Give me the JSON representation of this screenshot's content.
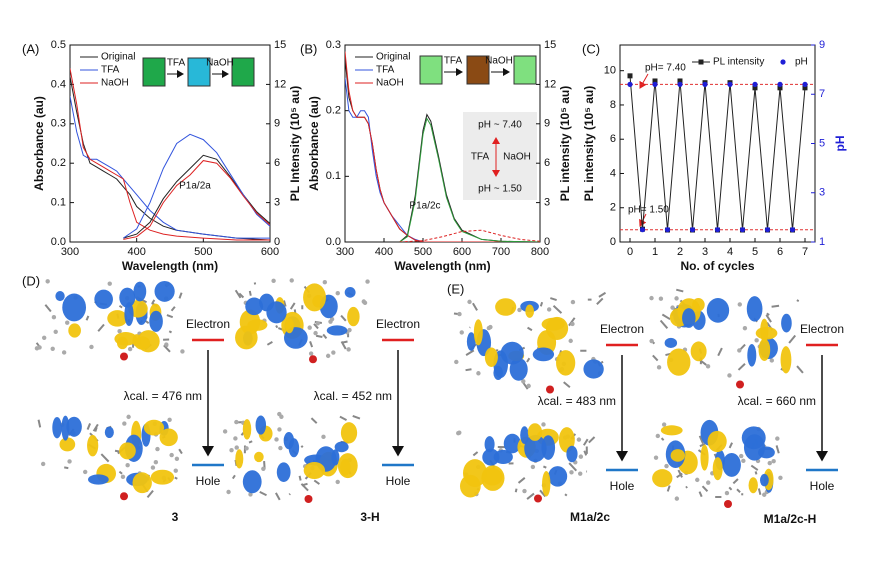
{
  "chart_data": [
    {
      "type": "line",
      "panel_label": "(A)",
      "x_label": "Wavelength (nm)",
      "y_label": "Absorbance (au)",
      "y2_label": "PL Intensity (10⁵ au)",
      "xlim": [
        300,
        600
      ],
      "xticks": [
        300,
        400,
        500,
        600
      ],
      "ylim": [
        0,
        0.5
      ],
      "yticks": [
        {
          "value": 0,
          "label": "0.0"
        },
        0.1,
        0.2,
        0.3,
        0.4,
        0.5
      ],
      "y2lim": [
        0,
        15
      ],
      "y2ticks": [
        0,
        3,
        6,
        9,
        12,
        15
      ],
      "legend": "upper left",
      "annotations": [
        "TFA",
        "NaOH",
        "P1a/2a"
      ],
      "series": [
        {
          "name": "Original",
          "color": "#222222",
          "x": [
            300,
            310,
            320,
            330,
            340,
            350,
            360,
            370,
            380,
            390,
            400,
            420,
            440,
            460,
            500,
            550,
            600
          ],
          "values": [
            0.42,
            0.33,
            0.25,
            0.2,
            0.19,
            0.18,
            0.17,
            0.16,
            0.14,
            0.12,
            0.09,
            0.06,
            0.04,
            0.03,
            0.02,
            0.01,
            0.005
          ]
        },
        {
          "name": "TFA",
          "color": "#3355dd",
          "x": [
            300,
            310,
            320,
            330,
            340,
            350,
            360,
            370,
            380,
            390,
            400,
            420,
            440,
            460,
            500,
            550,
            600
          ],
          "values": [
            0.37,
            0.28,
            0.22,
            0.21,
            0.21,
            0.2,
            0.19,
            0.18,
            0.16,
            0.14,
            0.12,
            0.08,
            0.05,
            0.03,
            0.02,
            0.01,
            0.01
          ]
        },
        {
          "name": "NaOH",
          "color": "#dd2222",
          "x": [
            300,
            310,
            320,
            330,
            340,
            350,
            360,
            370,
            380,
            390,
            400,
            420,
            440,
            460,
            500,
            550,
            600
          ],
          "values": [
            0.44,
            0.35,
            0.24,
            0.21,
            0.2,
            0.19,
            0.18,
            0.17,
            0.16,
            0.1,
            0.05,
            0.03,
            0.02,
            0.015,
            0.01,
            0.005,
            0.005
          ]
        },
        {
          "color": "#222222",
          "axis": "y2",
          "x": [
            380,
            400,
            420,
            440,
            460,
            480,
            500,
            520,
            540,
            560,
            580,
            600
          ],
          "values": [
            0.3,
            0.6,
            1.5,
            3.3,
            4.6,
            5.6,
            6.6,
            6.3,
            5.0,
            3.6,
            2.3,
            1.4
          ]
        },
        {
          "color": "#3355dd",
          "axis": "y2",
          "x": [
            380,
            400,
            420,
            440,
            460,
            480,
            500,
            520,
            540,
            560,
            580,
            600
          ],
          "values": [
            0.3,
            1.0,
            3.0,
            5.6,
            7.5,
            8.2,
            7.8,
            6.8,
            5.2,
            3.6,
            2.1,
            1.2
          ]
        },
        {
          "color": "#dd2222",
          "axis": "y2",
          "x": [
            380,
            400,
            420,
            440,
            460,
            480,
            500,
            520,
            540,
            560,
            580,
            600
          ],
          "values": [
            0.2,
            0.4,
            1.2,
            3.0,
            4.3,
            5.1,
            6.2,
            6.0,
            4.9,
            3.5,
            2.2,
            1.3
          ]
        }
      ]
    },
    {
      "type": "line",
      "panel_label": "(B)",
      "x_label": "Wavelength (nm)",
      "y_label": "Absorbance (au)",
      "y2_label": "PL intensity (10⁵ au)",
      "xlim": [
        300,
        800
      ],
      "xticks": [
        300,
        400,
        500,
        600,
        700,
        800
      ],
      "ylim": [
        0,
        0.3
      ],
      "yticks": [
        {
          "value": 0,
          "label": "0.0"
        },
        0.1,
        0.2,
        0.3
      ],
      "y2lim": [
        0,
        15
      ],
      "y2ticks": [
        0,
        3,
        6,
        9,
        12,
        15
      ],
      "legend": "upper left",
      "annotations": [
        "TFA",
        "NaOH",
        "pH ~ 7.40",
        "TFA",
        "NaOH",
        "pH ~ 1.50",
        "P1a/2c"
      ],
      "series": [
        {
          "name": "Original",
          "color": "#222222",
          "x": [
            300,
            310,
            320,
            330,
            340,
            350,
            360,
            370,
            380,
            390,
            400,
            420,
            440,
            460,
            480,
            500,
            800
          ],
          "values": [
            0.28,
            0.22,
            0.2,
            0.19,
            0.19,
            0.19,
            0.18,
            0.15,
            0.11,
            0.08,
            0.06,
            0.04,
            0.02,
            0.01,
            0.003,
            0,
            0
          ]
        },
        {
          "name": "TFA",
          "color": "#3355dd",
          "x": [
            300,
            310,
            320,
            330,
            340,
            350,
            360,
            370,
            380,
            390,
            400,
            420,
            440,
            460,
            480,
            500,
            800
          ],
          "values": [
            0.25,
            0.2,
            0.19,
            0.19,
            0.2,
            0.2,
            0.19,
            0.14,
            0.1,
            0.075,
            0.06,
            0.04,
            0.025,
            0.01,
            0.004,
            0,
            0
          ]
        },
        {
          "name": "NaOH",
          "color": "#dd2222",
          "x": [
            300,
            310,
            320,
            330,
            340,
            350,
            360,
            370,
            380,
            390,
            400,
            420,
            440,
            460,
            480,
            500,
            800
          ],
          "values": [
            0.29,
            0.23,
            0.2,
            0.19,
            0.19,
            0.19,
            0.18,
            0.15,
            0.11,
            0.08,
            0.06,
            0.04,
            0.02,
            0.01,
            0.003,
            0,
            0
          ]
        },
        {
          "color": "#222222",
          "axis": "y2",
          "x": [
            440,
            460,
            480,
            500,
            510,
            520,
            540,
            560,
            580,
            600,
            650,
            700,
            800
          ],
          "values": [
            0,
            0.5,
            3.5,
            8.5,
            9.7,
            9.2,
            6.5,
            3.6,
            1.8,
            0.9,
            0.2,
            0.05,
            0
          ]
        },
        {
          "color": "#2e9a3a",
          "axis": "y2",
          "x": [
            440,
            460,
            480,
            500,
            510,
            520,
            540,
            560,
            580,
            600,
            650,
            700,
            800
          ],
          "values": [
            0,
            0.4,
            3.2,
            8.2,
            9.4,
            8.9,
            6.3,
            3.4,
            1.7,
            0.8,
            0.2,
            0.05,
            0
          ]
        },
        {
          "color": "#dd2222",
          "axis": "y2",
          "dash": true,
          "x": [
            440,
            500,
            550,
            600,
            650,
            700,
            750,
            800
          ],
          "values": [
            0,
            0.1,
            0.4,
            0.8,
            0.9,
            0.5,
            0.2,
            0.05
          ]
        }
      ]
    },
    {
      "type": "line",
      "panel_label": "(C)",
      "x_label": "No. of cycles",
      "y_label": "PL intensity (10⁵ au)",
      "y2_label": "pH",
      "y2_color": "#1f1fd6",
      "xlim": [
        -0.4,
        7.4
      ],
      "xticks": [
        0,
        1,
        2,
        3,
        4,
        5,
        6,
        7
      ],
      "ylim": [
        0,
        11.5
      ],
      "yticks": [
        0,
        2,
        4,
        6,
        8,
        10
      ],
      "y2lim": [
        1,
        9
      ],
      "y2ticks": [
        1,
        3,
        5,
        7,
        9
      ],
      "legend": "upper center",
      "reference_lines": [
        7.4,
        1.5
      ],
      "reference_color": "#e03030",
      "annotations": [
        "pH= 7.40",
        "pH= 1.50"
      ],
      "series": [
        {
          "name": "PL intensity",
          "color": "#222222",
          "marker": "square",
          "x": [
            0,
            0.5,
            1,
            1.5,
            2,
            2.5,
            3,
            3.5,
            4,
            4.5,
            5,
            5.5,
            6,
            6.5,
            7
          ],
          "values": [
            9.7,
            0.75,
            9.4,
            0.7,
            9.4,
            0.7,
            9.3,
            0.7,
            9.3,
            0.7,
            9.0,
            0.7,
            9.0,
            0.7,
            9.0
          ]
        },
        {
          "name": "pH",
          "color": "#1f1fd6",
          "marker": "circle",
          "style": "scatter",
          "axis": "y2",
          "x": [
            0,
            0.5,
            1,
            1.5,
            2,
            2.5,
            3,
            3.5,
            4,
            4.5,
            5,
            5.5,
            6,
            6.5,
            7
          ],
          "values": [
            7.4,
            1.5,
            7.4,
            1.5,
            7.4,
            1.5,
            7.4,
            1.5,
            7.4,
            1.5,
            7.4,
            1.5,
            7.4,
            1.5,
            7.4
          ]
        }
      ]
    }
  ],
  "orbital_panels": [
    {
      "label": "(D)",
      "systems": [
        {
          "name": "3",
          "electron": "Electron",
          "hole": "Hole",
          "lambda": "λcal. = 476 nm"
        },
        {
          "name": "3-H",
          "electron": "Electron",
          "hole": "Hole",
          "lambda": "λcal. = 452 nm"
        }
      ]
    },
    {
      "label": "(E)",
      "systems": [
        {
          "name": "M1a/2c",
          "electron": "Electron",
          "hole": "Hole",
          "lambda": "λcal. = 483 nm"
        },
        {
          "name": "M1a/2c-H",
          "electron": "Electron",
          "hole": "Hole",
          "lambda": "λcal. = 660 nm"
        }
      ]
    }
  ]
}
